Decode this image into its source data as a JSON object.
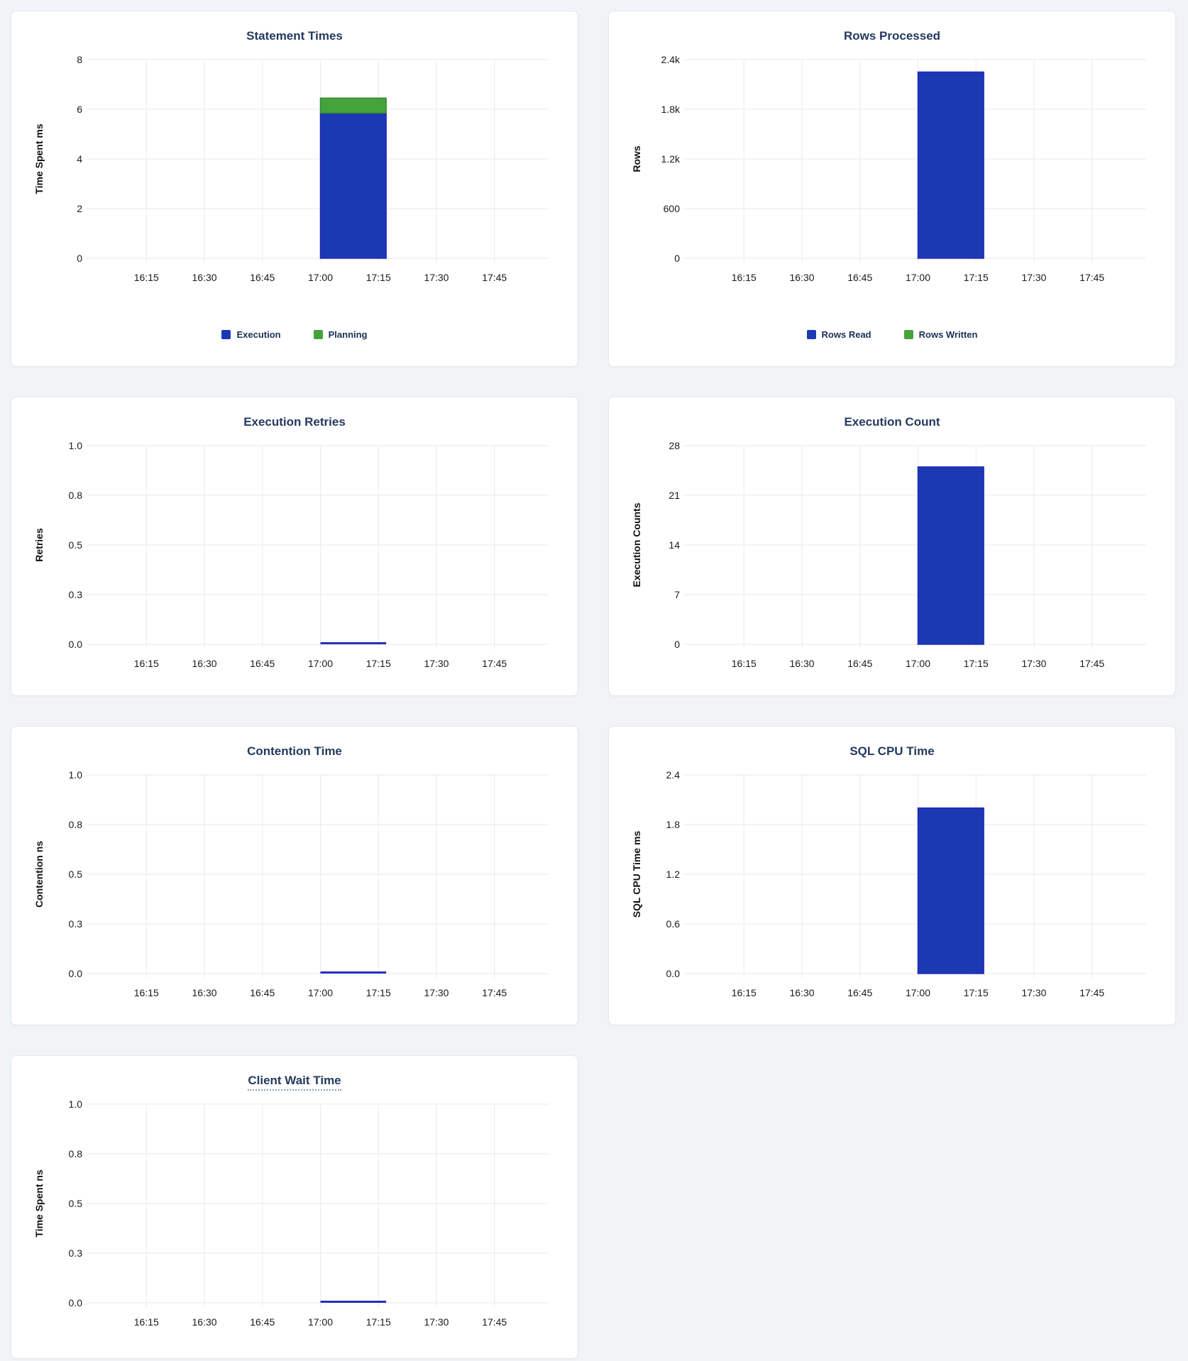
{
  "page": {
    "background": "#f0f4f7"
  },
  "colors": {
    "bar_blue": "#1c39b4",
    "bar_blue_stroke": "#2428b8",
    "bar_green": "#45a33c",
    "bar_green_stroke": "#2e8c2e",
    "zero_line_blue": "#2531bd",
    "grid": "#eaeaea",
    "title_text": "#24395f",
    "legend_text": "#1c2f55"
  },
  "chart_data": [
    {
      "key": "statement-times",
      "type": "bar",
      "title": "Statement Times",
      "title_underlined": false,
      "ylabel": "Time Spent ms",
      "ymax": 8,
      "yticks": [
        {
          "label": "0",
          "value": 0
        },
        {
          "label": "2",
          "value": 2
        },
        {
          "label": "4",
          "value": 4
        },
        {
          "label": "6",
          "value": 6
        },
        {
          "label": "8",
          "value": 8
        }
      ],
      "xticks": [
        {
          "label": "16:15",
          "minute": 14
        },
        {
          "label": "16:30",
          "minute": 29
        },
        {
          "label": "16:45",
          "minute": 44
        },
        {
          "label": "17:00",
          "minute": 59
        },
        {
          "label": "17:15",
          "minute": 74
        },
        {
          "label": "17:30",
          "minute": 89
        },
        {
          "label": "17:45",
          "minute": 104
        }
      ],
      "x_domain_minutes": 118,
      "bar": {
        "start_minute": 59,
        "end_minute": 76
      },
      "series": [
        {
          "name": "Execution",
          "value": 5.85,
          "color": "#1c39b4",
          "stroke": "#2428b8"
        },
        {
          "name": "Planning",
          "value": 0.6,
          "color": "#45a33c",
          "stroke": "#2e8c2e"
        }
      ],
      "legend": [
        {
          "label": "Execution",
          "color": "#1c39b4"
        },
        {
          "label": "Planning",
          "color": "#45a33c"
        }
      ]
    },
    {
      "key": "rows-processed",
      "type": "bar",
      "title": "Rows Processed",
      "title_underlined": false,
      "ylabel": "Rows",
      "ymax": 2400,
      "yticks": [
        {
          "label": "0",
          "value": 0
        },
        {
          "label": "600",
          "value": 600
        },
        {
          "label": "1.2k",
          "value": 1200
        },
        {
          "label": "1.8k",
          "value": 1800
        },
        {
          "label": "2.4k",
          "value": 2400
        }
      ],
      "xticks": [
        {
          "label": "16:15",
          "minute": 14
        },
        {
          "label": "16:30",
          "minute": 29
        },
        {
          "label": "16:45",
          "minute": 44
        },
        {
          "label": "17:00",
          "minute": 59
        },
        {
          "label": "17:15",
          "minute": 74
        },
        {
          "label": "17:30",
          "minute": 89
        },
        {
          "label": "17:45",
          "minute": 104
        }
      ],
      "x_domain_minutes": 118,
      "bar": {
        "start_minute": 59,
        "end_minute": 76
      },
      "series": [
        {
          "name": "Rows Read",
          "value": 2250,
          "color": "#1c39b4",
          "stroke": "#2428b8"
        },
        {
          "name": "Rows Written",
          "value": 0,
          "color": "#45a33c",
          "stroke": "#2e8c2e"
        }
      ],
      "legend": [
        {
          "label": "Rows Read",
          "color": "#1c39b4"
        },
        {
          "label": "Rows Written",
          "color": "#45a33c"
        }
      ]
    },
    {
      "key": "execution-retries",
      "type": "line",
      "title": "Execution Retries",
      "title_underlined": false,
      "ylabel": "Retries",
      "ymax": 1,
      "yticks": [
        {
          "label": "0.0",
          "value": 0
        },
        {
          "label": "0.3",
          "value": 0.25
        },
        {
          "label": "0.5",
          "value": 0.5
        },
        {
          "label": "0.8",
          "value": 0.75
        },
        {
          "label": "1.0",
          "value": 1
        }
      ],
      "xticks": [
        {
          "label": "16:15",
          "minute": 14
        },
        {
          "label": "16:30",
          "minute": 29
        },
        {
          "label": "16:45",
          "minute": 44
        },
        {
          "label": "17:00",
          "minute": 59
        },
        {
          "label": "17:15",
          "minute": 74
        },
        {
          "label": "17:30",
          "minute": 89
        },
        {
          "label": "17:45",
          "minute": 104
        }
      ],
      "x_domain_minutes": 118,
      "bar": {
        "start_minute": 59,
        "end_minute": 76
      },
      "series": [
        {
          "name": "Retries",
          "value": 0,
          "color": "#2531bd"
        }
      ],
      "legend": null
    },
    {
      "key": "execution-count",
      "type": "bar",
      "title": "Execution Count",
      "title_underlined": false,
      "ylabel": "Execution Counts",
      "ymax": 28,
      "yticks": [
        {
          "label": "0",
          "value": 0
        },
        {
          "label": "7",
          "value": 7
        },
        {
          "label": "14",
          "value": 14
        },
        {
          "label": "21",
          "value": 21
        },
        {
          "label": "28",
          "value": 28
        }
      ],
      "xticks": [
        {
          "label": "16:15",
          "minute": 14
        },
        {
          "label": "16:30",
          "minute": 29
        },
        {
          "label": "16:45",
          "minute": 44
        },
        {
          "label": "17:00",
          "minute": 59
        },
        {
          "label": "17:15",
          "minute": 74
        },
        {
          "label": "17:30",
          "minute": 89
        },
        {
          "label": "17:45",
          "minute": 104
        }
      ],
      "x_domain_minutes": 118,
      "bar": {
        "start_minute": 59,
        "end_minute": 76
      },
      "series": [
        {
          "name": "Execution Count",
          "value": 25,
          "color": "#1c39b4",
          "stroke": "#2428b8"
        }
      ],
      "legend": null
    },
    {
      "key": "contention-time",
      "type": "line",
      "title": "Contention Time",
      "title_underlined": false,
      "ylabel": "Contention ns",
      "ymax": 1,
      "yticks": [
        {
          "label": "0.0",
          "value": 0
        },
        {
          "label": "0.3",
          "value": 0.25
        },
        {
          "label": "0.5",
          "value": 0.5
        },
        {
          "label": "0.8",
          "value": 0.75
        },
        {
          "label": "1.0",
          "value": 1
        }
      ],
      "xticks": [
        {
          "label": "16:15",
          "minute": 14
        },
        {
          "label": "16:30",
          "minute": 29
        },
        {
          "label": "16:45",
          "minute": 44
        },
        {
          "label": "17:00",
          "minute": 59
        },
        {
          "label": "17:15",
          "minute": 74
        },
        {
          "label": "17:30",
          "minute": 89
        },
        {
          "label": "17:45",
          "minute": 104
        }
      ],
      "x_domain_minutes": 118,
      "bar": {
        "start_minute": 59,
        "end_minute": 76
      },
      "series": [
        {
          "name": "Contention",
          "value": 0,
          "color": "#2531bd"
        }
      ],
      "legend": null
    },
    {
      "key": "sql-cpu-time",
      "type": "bar",
      "title": "SQL CPU Time",
      "title_underlined": false,
      "ylabel": "SQL CPU Time ms",
      "ymax": 2.4,
      "yticks": [
        {
          "label": "0.0",
          "value": 0
        },
        {
          "label": "0.6",
          "value": 0.6
        },
        {
          "label": "1.2",
          "value": 1.2
        },
        {
          "label": "1.8",
          "value": 1.8
        },
        {
          "label": "2.4",
          "value": 2.4
        }
      ],
      "xticks": [
        {
          "label": "16:15",
          "minute": 14
        },
        {
          "label": "16:30",
          "minute": 29
        },
        {
          "label": "16:45",
          "minute": 44
        },
        {
          "label": "17:00",
          "minute": 59
        },
        {
          "label": "17:15",
          "minute": 74
        },
        {
          "label": "17:30",
          "minute": 89
        },
        {
          "label": "17:45",
          "minute": 104
        }
      ],
      "x_domain_minutes": 118,
      "bar": {
        "start_minute": 59,
        "end_minute": 76
      },
      "series": [
        {
          "name": "SQL CPU Time",
          "value": 2.0,
          "color": "#1c39b4",
          "stroke": "#2428b8"
        }
      ],
      "legend": null
    },
    {
      "key": "client-wait-time",
      "type": "line",
      "title": "Client Wait Time",
      "title_underlined": true,
      "ylabel": "Time Spent ns",
      "ymax": 1,
      "yticks": [
        {
          "label": "0.0",
          "value": 0
        },
        {
          "label": "0.3",
          "value": 0.25
        },
        {
          "label": "0.5",
          "value": 0.5
        },
        {
          "label": "0.8",
          "value": 0.75
        },
        {
          "label": "1.0",
          "value": 1
        }
      ],
      "xticks": [
        {
          "label": "16:15",
          "minute": 14
        },
        {
          "label": "16:30",
          "minute": 29
        },
        {
          "label": "16:45",
          "minute": 44
        },
        {
          "label": "17:00",
          "minute": 59
        },
        {
          "label": "17:15",
          "minute": 74
        },
        {
          "label": "17:30",
          "minute": 89
        },
        {
          "label": "17:45",
          "minute": 104
        }
      ],
      "x_domain_minutes": 118,
      "bar": {
        "start_minute": 59,
        "end_minute": 76
      },
      "series": [
        {
          "name": "Client Wait",
          "value": 0,
          "color": "#2531bd"
        }
      ],
      "legend": null
    }
  ]
}
